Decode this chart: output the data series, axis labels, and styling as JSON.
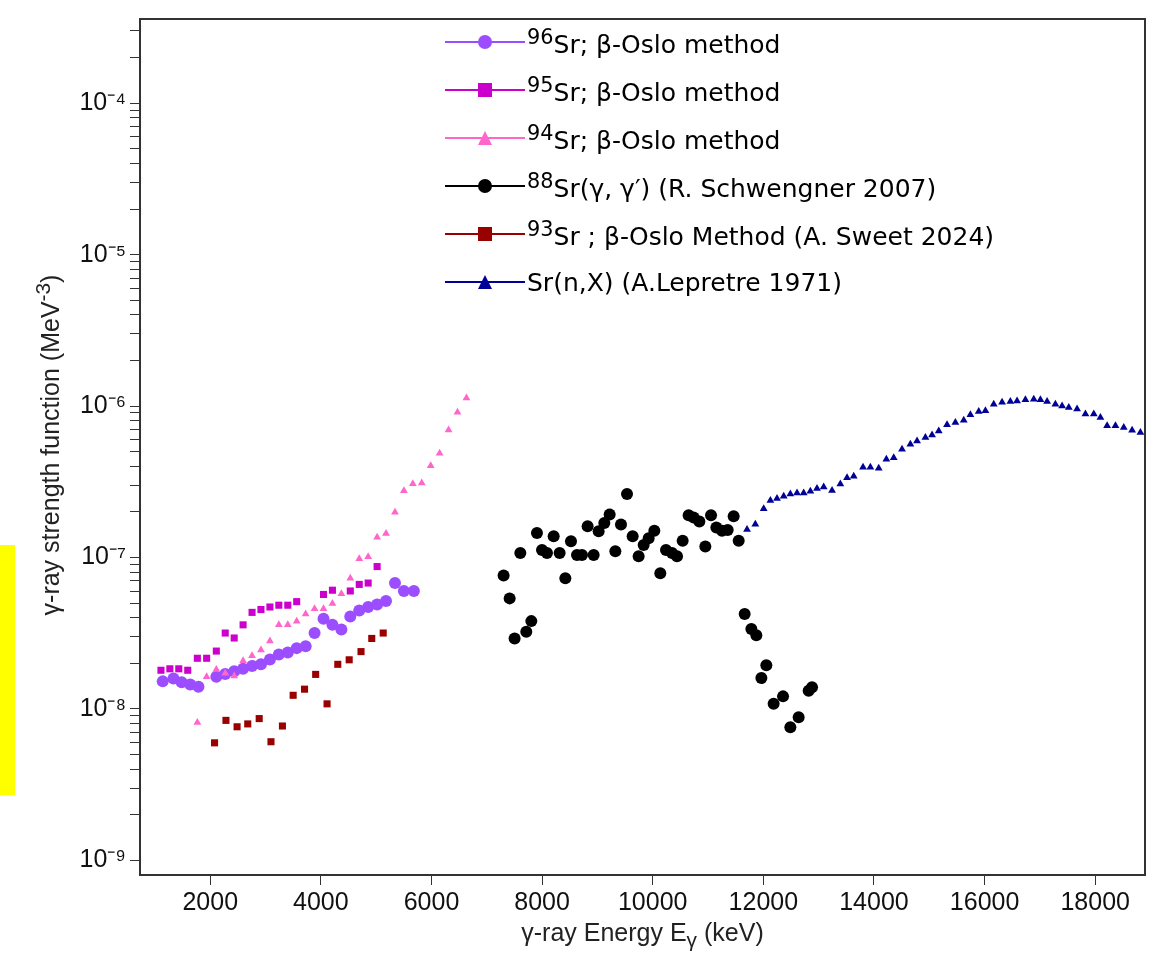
{
  "chart_data": {
    "type": "scatter",
    "xlabel": "γ-ray Energy E$_{γ}$ (keV)",
    "ylabel": "γ-ray strength function (MeV$^{-3}$)",
    "log": "y",
    "legend": "top right",
    "xlim": [
      730,
      18900
    ],
    "ylim": [
      8e-10,
      0.00036
    ],
    "xticks": [
      2000,
      4000,
      6000,
      8000,
      10000,
      12000,
      14000,
      16000,
      18000
    ],
    "yticks": [
      {
        "value": 1e-09,
        "label": "10⁻⁹"
      },
      {
        "value": 2e-09,
        "label": null
      },
      {
        "value": 3e-09,
        "label": null
      },
      {
        "value": 4e-09,
        "label": null
      },
      {
        "value": 5e-09,
        "label": null
      },
      {
        "value": 6e-09,
        "label": null
      },
      {
        "value": 7e-09,
        "label": null
      },
      {
        "value": 8e-09,
        "label": null
      },
      {
        "value": 9e-09,
        "label": null
      },
      {
        "value": 1e-08,
        "label": "10⁻⁸"
      },
      {
        "value": 2e-08,
        "label": null
      },
      {
        "value": 3e-08,
        "label": null
      },
      {
        "value": 4e-08,
        "label": null
      },
      {
        "value": 5e-08,
        "label": null
      },
      {
        "value": 6e-08,
        "label": null
      },
      {
        "value": 7e-08,
        "label": null
      },
      {
        "value": 8e-08,
        "label": null
      },
      {
        "value": 9e-08,
        "label": null
      },
      {
        "value": 1e-07,
        "label": "10⁻⁷"
      },
      {
        "value": 2e-07,
        "label": null
      },
      {
        "value": 3e-07,
        "label": null
      },
      {
        "value": 4e-07,
        "label": null
      },
      {
        "value": 5e-07,
        "label": null
      },
      {
        "value": 6e-07,
        "label": null
      },
      {
        "value": 7e-07,
        "label": null
      },
      {
        "value": 8e-07,
        "label": null
      },
      {
        "value": 9e-07,
        "label": null
      },
      {
        "value": 1e-06,
        "label": "10⁻⁶"
      },
      {
        "value": 2e-06,
        "label": null
      },
      {
        "value": 3e-06,
        "label": null
      },
      {
        "value": 4e-06,
        "label": null
      },
      {
        "value": 5e-06,
        "label": null
      },
      {
        "value": 6e-06,
        "label": null
      },
      {
        "value": 7e-06,
        "label": null
      },
      {
        "value": 8e-06,
        "label": null
      },
      {
        "value": 9e-06,
        "label": null
      },
      {
        "value": 1e-05,
        "label": "10⁻⁵"
      },
      {
        "value": 2e-05,
        "label": null
      },
      {
        "value": 3e-05,
        "label": null
      },
      {
        "value": 4e-05,
        "label": null
      },
      {
        "value": 5e-05,
        "label": null
      },
      {
        "value": 6e-05,
        "label": null
      },
      {
        "value": 7e-05,
        "label": null
      },
      {
        "value": 8e-05,
        "label": null
      },
      {
        "value": 9e-05,
        "label": null
      },
      {
        "value": 0.0001,
        "label": "10⁻⁴"
      },
      {
        "value": 0.0002,
        "label": null
      },
      {
        "value": 0.0003,
        "label": null
      }
    ],
    "series": [
      {
        "name": "$^{96}$Sr; β-Oslo method",
        "color": "#9b4dff",
        "marker": "circle",
        "x": [
          1141,
          1335,
          1483,
          1638,
          1787,
          2110,
          2271,
          2433,
          2594,
          2756,
          2917,
          3079,
          3240,
          3402,
          3563,
          3725,
          3886,
          4048,
          4209,
          4371,
          4532,
          4694,
          4855,
          5017,
          5178,
          5340,
          5501,
          5682
        ],
        "values": [
          1.52e-08,
          1.59e-08,
          1.5e-08,
          1.45e-08,
          1.4e-08,
          1.63e-08,
          1.7e-08,
          1.77e-08,
          1.84e-08,
          1.92e-08,
          1.97e-08,
          2.12e-08,
          2.29e-08,
          2.36e-08,
          2.52e-08,
          2.59e-08,
          3.17e-08,
          3.94e-08,
          3.59e-08,
          3.34e-08,
          4.07e-08,
          4.46e-08,
          4.71e-08,
          4.89e-08,
          5.16e-08,
          6.78e-08,
          6.01e-08,
          6e-08
        ]
      },
      {
        "name": "$^{95}$Sr; β-Oslo method",
        "color": "#cc00cc",
        "marker": "square",
        "x": [
          1109,
          1270,
          1431,
          1593,
          1767,
          1935,
          2110,
          2271,
          2433,
          2594,
          2756,
          2917,
          3079,
          3240,
          3402,
          3563,
          4048,
          4209,
          4532,
          4694,
          4855,
          5017
        ],
        "values": [
          1.8e-08,
          1.84e-08,
          1.84e-08,
          1.8e-08,
          2.16e-08,
          2.16e-08,
          2.41e-08,
          3.17e-08,
          2.94e-08,
          3.59e-08,
          4.34e-08,
          4.53e-08,
          4.71e-08,
          4.84e-08,
          4.84e-08,
          5.11e-08,
          5.7e-08,
          6.08e-08,
          6.01e-08,
          6.64e-08,
          6.78e-08,
          8.71e-08
        ]
      },
      {
        "name": "$^{94}$Sr; β-Oslo method",
        "color": "#ff66cc",
        "marker": "triangle",
        "x": [
          1767,
          1935,
          2110,
          2271,
          2433,
          2594,
          2756,
          2917,
          3079,
          3240,
          3402,
          3563,
          3725,
          3886,
          4048,
          4209,
          4371,
          4532,
          4694,
          4855,
          5017,
          5178,
          5340,
          5501,
          5663,
          5824,
          5986,
          6147,
          6309,
          6470,
          6632
        ],
        "values": [
          8.13e-09,
          1.63e-08,
          1.82e-08,
          1.72e-08,
          1.65e-08,
          2.08e-08,
          2.24e-08,
          2.45e-08,
          2.81e-08,
          3.59e-08,
          3.59e-08,
          3.79e-08,
          4.23e-08,
          4.58e-08,
          4.58e-08,
          4.97e-08,
          5.76e-08,
          7.28e-08,
          9.82e-08,
          1.01e-07,
          1.36e-07,
          1.44e-07,
          1.99e-07,
          2.76e-07,
          3.07e-07,
          3.11e-07,
          4.03e-07,
          4.88e-07,
          6.95e-07,
          9.12e-07,
          1.13e-06
        ]
      },
      {
        "name": "$^{88}$Sr(γ, γ′) (R. Schwengner 2007)",
        "color": "#000000",
        "marker": "circle",
        "x": [
          7304,
          7413,
          7503,
          7606,
          7714,
          7805,
          7907,
          7998,
          8088,
          8209,
          8317,
          8420,
          8522,
          8631,
          8721,
          8823,
          8932,
          9022,
          9125,
          9221,
          9324,
          9426,
          9535,
          9637,
          9745,
          9836,
          9926,
          10029,
          10137,
          10240,
          10349,
          10439,
          10541,
          10649,
          10740,
          10843,
          10951,
          11054,
          11150,
          11253,
          11355,
          11463,
          11554,
          11662,
          11783,
          11873,
          11964,
          12054,
          12186,
          12356,
          12488,
          12638,
          12819,
          12880
        ],
        "values": [
          7.6e-08,
          5.37e-08,
          2.92e-08,
          1.07e-07,
          3.23e-08,
          3.8e-08,
          1.45e-07,
          1.12e-07,
          1.07e-07,
          1.38e-07,
          1.07e-07,
          7.29e-08,
          1.28e-07,
          1.04e-07,
          1.04e-07,
          1.61e-07,
          1.04e-07,
          1.49e-07,
          1.69e-07,
          1.92e-07,
          1.1e-07,
          1.65e-07,
          2.63e-07,
          1.38e-07,
          1.02e-07,
          1.21e-07,
          1.34e-07,
          1.5e-07,
          7.87e-08,
          1.12e-07,
          1.07e-07,
          1.02e-07,
          1.29e-07,
          1.9e-07,
          1.84e-07,
          1.73e-07,
          1.18e-07,
          1.9e-07,
          1.58e-07,
          1.5e-07,
          1.52e-07,
          1.87e-07,
          1.29e-07,
          4.23e-08,
          3.37e-08,
          3.07e-08,
          1.6e-08,
          1.94e-08,
          1.08e-08,
          1.21e-08,
          7.57e-09,
          8.81e-09,
          1.32e-08,
          1.39e-08
        ]
      },
      {
        "name": "$^{93}$Sr ; β-Oslo Method (A. Sweet 2024)",
        "color": "#990000",
        "marker": "square",
        "x": [
          2078,
          2284,
          2485,
          2678,
          2885,
          3098,
          3305,
          3499,
          3705,
          3906,
          4112,
          4306,
          4512,
          4726,
          4920,
          5127
        ],
        "values": [
          5.97e-09,
          8.4e-09,
          7.62e-09,
          7.96e-09,
          8.63e-09,
          6.07e-09,
          7.71e-09,
          1.23e-08,
          1.35e-08,
          1.69e-08,
          1.08e-08,
          1.97e-08,
          2.11e-08,
          2.39e-08,
          2.92e-08,
          3.17e-08
        ]
      },
      {
        "name": "Sr(n,X) (A.Lepretre 1971)",
        "color": "#000099",
        "marker": "triangle",
        "x": [
          11705,
          11855,
          12006,
          12127,
          12247,
          12368,
          12488,
          12609,
          12729,
          12850,
          12970,
          13091,
          13242,
          13392,
          13513,
          13634,
          13802,
          13935,
          14086,
          14224,
          14357,
          14507,
          14658,
          14779,
          14930,
          15050,
          15171,
          15321,
          15472,
          15623,
          15743,
          15894,
          16015,
          16165,
          16316,
          16466,
          16587,
          16738,
          16889,
          17009,
          17130,
          17280,
          17401,
          17522,
          17672,
          17823,
          17974,
          18094,
          18215,
          18366,
          18516,
          18667,
          18817
        ],
        "values": [
          1.53e-07,
          1.66e-07,
          2.1e-07,
          2.38e-07,
          2.45e-07,
          2.54e-07,
          2.63e-07,
          2.67e-07,
          2.67e-07,
          2.74e-07,
          2.86e-07,
          2.92e-07,
          2.77e-07,
          3.06e-07,
          3.36e-07,
          3.44e-07,
          3.95e-07,
          3.95e-07,
          3.88e-07,
          4.45e-07,
          4.56e-07,
          5.19e-07,
          5.6e-07,
          5.89e-07,
          6.19e-07,
          6.45e-07,
          6.85e-07,
          7.52e-07,
          7.78e-07,
          8.07e-07,
          8.75e-07,
          9.21e-07,
          9.31e-07,
          1.03e-06,
          1.06e-06,
          1.07e-06,
          1.08e-06,
          1.1e-06,
          1.11e-06,
          1.1e-06,
          1.07e-06,
          1.03e-06,
          1e-06,
          9.79e-07,
          9.55e-07,
          8.85e-07,
          8.85e-07,
          8.4e-07,
          7.4e-07,
          7.4e-07,
          7.21e-07,
          6.93e-07,
          6.68e-07
        ]
      }
    ]
  }
}
